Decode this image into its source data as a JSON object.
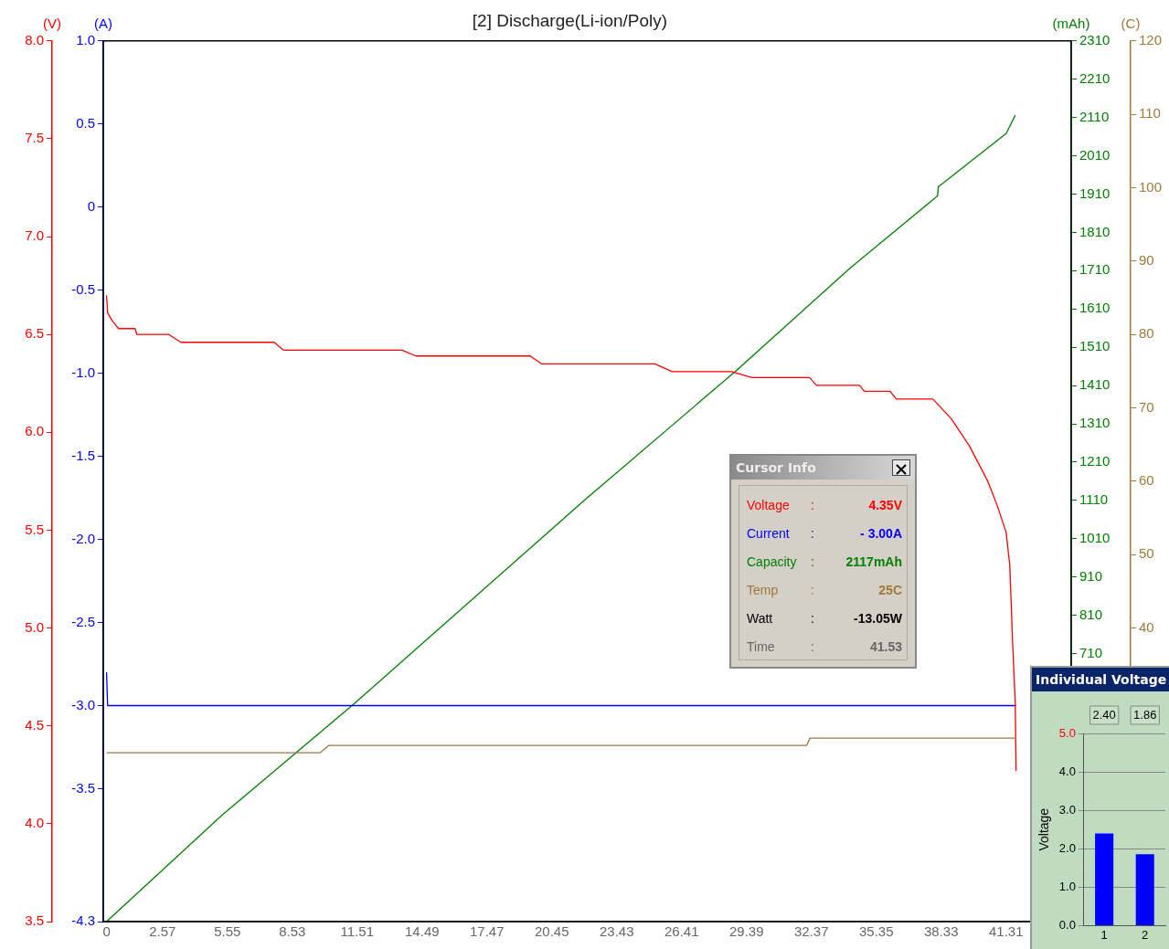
{
  "chart_data": [
    {
      "type": "line",
      "title": "[2] Discharge(Li-ion/Poly)",
      "ylabel": "(V)",
      "y2label": "(A)",
      "y3label": "(mAh)",
      "xlim": [
        -0.15,
        44.3
      ],
      "xticks": [
        0,
        2.57,
        5.55,
        8.53,
        11.51,
        14.49,
        17.47,
        20.45,
        23.43,
        26.41,
        29.39,
        32.37,
        35.35,
        38.33,
        41.31
      ],
      "ylim": [
        3.5,
        8
      ],
      "yticks": [
        3.5,
        {
          "value": 4,
          "label": "4.0"
        },
        4.5,
        {
          "value": 5,
          "label": "5.0"
        },
        5.5,
        {
          "value": 6,
          "label": "6.0"
        },
        6.5,
        {
          "value": 7,
          "label": "7.0"
        },
        7.5,
        {
          "value": 8,
          "label": "8.0"
        }
      ],
      "y2lim": [
        -4.3,
        1
      ],
      "y2ticks": [
        -4.3,
        -3.5,
        {
          "value": -3,
          "label": "-3.0"
        },
        -2.5,
        {
          "value": -2,
          "label": "-2.0"
        },
        -1.5,
        {
          "value": -1,
          "label": "-1.0"
        },
        -0.5,
        0,
        0.5,
        {
          "value": 1,
          "label": "1.0"
        }
      ],
      "y3lim": [
        10,
        2310
      ],
      "y3ticks": [
        710,
        810,
        910,
        1010,
        1110,
        1210,
        1310,
        1410,
        1510,
        1610,
        1710,
        1810,
        1910,
        2010,
        2110,
        2210,
        2310
      ],
      "grid": false,
      "legend": false,
      "marker": "none",
      "line_style": "solid",
      "series": [
        {
          "color": "#ff0000",
          "x": [
            0,
            0.05,
            0.26,
            0.55,
            1.31,
            1.39,
            2.86,
            3.41,
            7.7,
            8.12,
            13.57,
            14.2,
            19.46,
            19.97,
            25.18,
            25.97,
            28.71,
            29.63,
            32.28,
            32.61,
            34.58,
            34.8,
            35.98,
            36.27,
            37.95,
            38.37,
            38.79,
            39.21,
            39.63,
            40.05,
            40.47,
            40.89,
            41.31,
            41.48,
            41.6,
            41.73,
            41.77
          ],
          "values": [
            6.7,
            6.61,
            6.57,
            6.53,
            6.53,
            6.5,
            6.5,
            6.46,
            6.46,
            6.42,
            6.42,
            6.39,
            6.39,
            6.35,
            6.35,
            6.31,
            6.31,
            6.28,
            6.28,
            6.24,
            6.24,
            6.21,
            6.21,
            6.17,
            6.17,
            6.12,
            6.07,
            6.0,
            5.93,
            5.84,
            5.75,
            5.63,
            5.49,
            5.32,
            4.95,
            4.62,
            4.27
          ]
        },
        {
          "color": "#0000ff",
          "axis": "y2",
          "x": [
            0,
            0.05,
            41.77
          ],
          "values": [
            -2.8,
            -3.0,
            -3.0
          ]
        },
        {
          "color": "#008000",
          "axis": "y3",
          "x": [
            0,
            5.3,
            11.27,
            22.0,
            28.92,
            34.17,
            38.16,
            38.2,
            41.31,
            41.52,
            41.73
          ],
          "values": [
            10,
            288,
            574,
            1113,
            1449,
            1718,
            1905,
            1929,
            2068,
            2092,
            2116
          ]
        }
      ]
    },
    {
      "type": "line",
      "ylabel": "(C)",
      "xlim": [
        -0.15,
        44.3
      ],
      "ylim": [
        0,
        120
      ],
      "yticks": [
        40,
        50,
        60,
        70,
        80,
        90,
        100,
        110,
        120
      ],
      "tick_labels": "y",
      "grid": false,
      "legend": false,
      "marker": "none",
      "line_style": "solid",
      "series": [
        {
          "color": "#a07838",
          "x": [
            0,
            9.8,
            10.2,
            32.15,
            32.3,
            41.77
          ],
          "values": [
            23,
            23,
            24,
            24,
            25,
            25
          ]
        }
      ]
    },
    {
      "type": "other",
      "title": "Cursor Info",
      "annotations": [
        "Voltage",
        ":",
        "4.35V",
        "Current",
        ":",
        "- 3.00A",
        "Capacity",
        ":",
        "2117mAh",
        "Temp",
        ":",
        "25C",
        "Watt",
        ":",
        "-13.05W",
        "Time",
        ":",
        "41.53"
      ]
    },
    {
      "type": "bar",
      "title": "Individual Voltage",
      "ylabel": "Voltage",
      "categories": [
        "1",
        "2"
      ],
      "values": [
        2.4,
        1.86
      ],
      "value_labels": [
        "2.40",
        "1.86"
      ],
      "color": "#0000ff",
      "ylim": [
        0,
        5
      ],
      "yticks": [
        {
          "value": 0,
          "label": "0.0"
        },
        {
          "value": 1,
          "label": "1.0"
        },
        {
          "value": 2,
          "label": "2.0"
        },
        {
          "value": 3,
          "label": "3.0"
        },
        {
          "value": 4,
          "label": "4.0"
        },
        {
          "value": 5,
          "label": "5.0"
        }
      ],
      "grid": "y"
    }
  ]
}
